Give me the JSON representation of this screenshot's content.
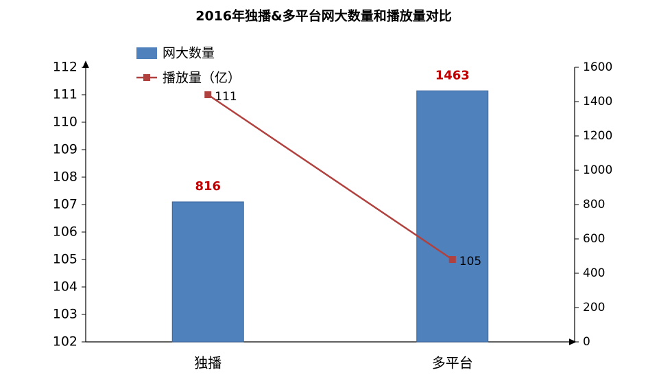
{
  "chart_data": {
    "type": "combo",
    "title": "2016年独播&多平台网大数量和播放量对比",
    "categories": [
      "独播",
      "多平台"
    ],
    "series": [
      {
        "name": "网大数量",
        "type": "bar",
        "color": "#4f81bd",
        "axis": "y2",
        "values": [
          816,
          1463
        ]
      },
      {
        "name": "播放量（亿）",
        "type": "line",
        "color": "#b0413e",
        "axis": "y",
        "values": [
          111,
          105
        ]
      }
    ],
    "ylim": [
      102,
      112
    ],
    "yticks": [
      102,
      103,
      104,
      105,
      106,
      107,
      108,
      109,
      110,
      111,
      112
    ],
    "y2lim": [
      0,
      1600
    ],
    "y2ticks": [
      0,
      200,
      400,
      600,
      800,
      1000,
      1200,
      1400,
      1600
    ],
    "legend": "top-left"
  }
}
